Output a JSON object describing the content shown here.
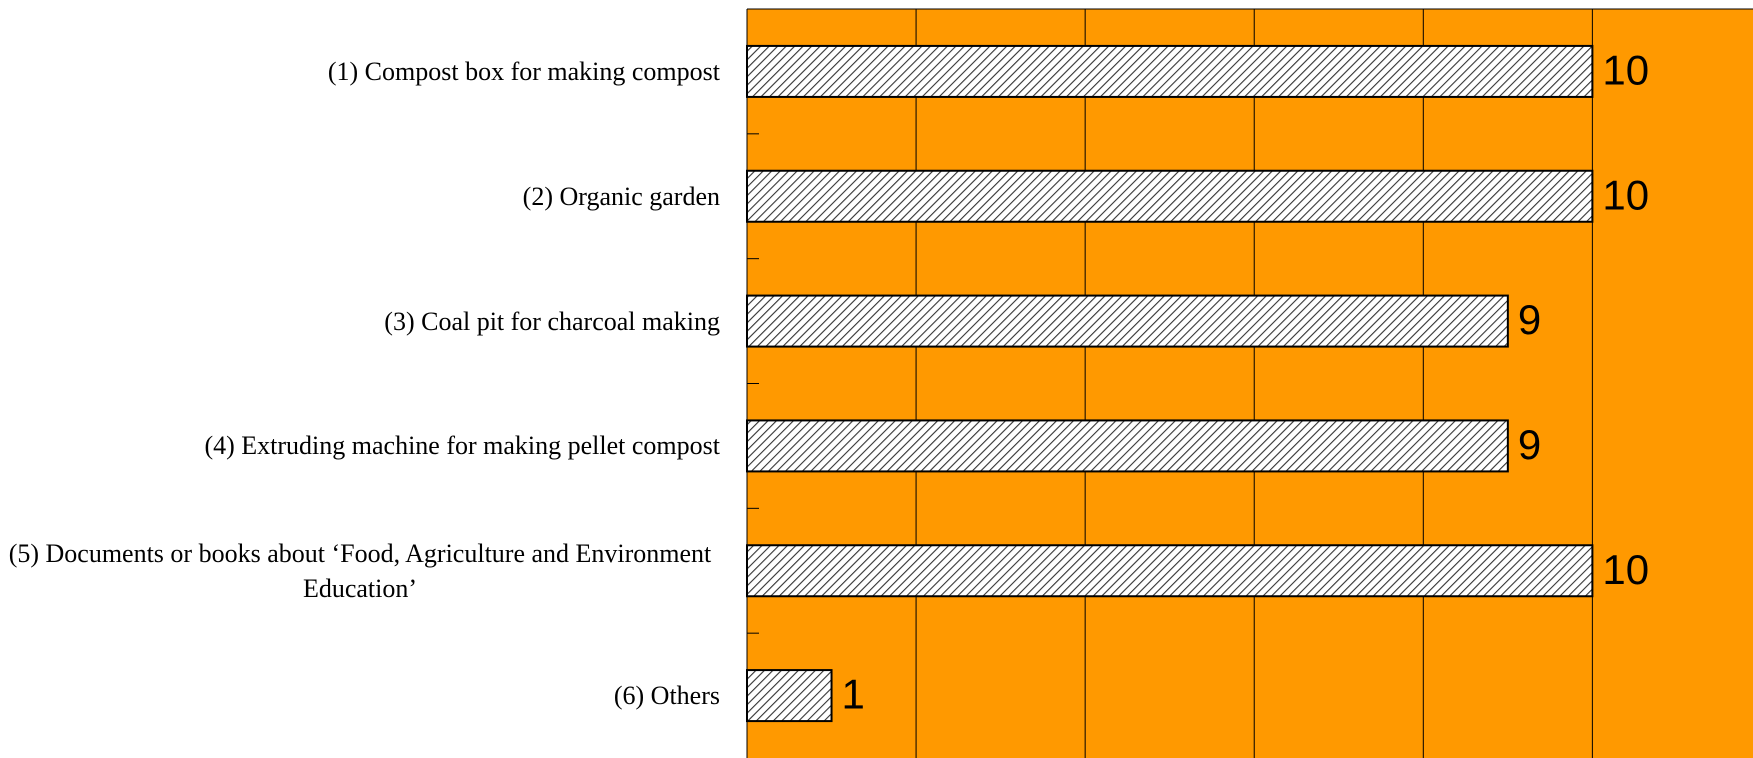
{
  "chart_data": {
    "type": "barh",
    "categories": [
      "(1) Compost box for making compost",
      "(2) Organic garden",
      "(3) Coal pit for charcoal making",
      "(4) Extruding machine for making pellet compost",
      "(5) Documents or books about ‘Food, Agriculture and Environment Education’",
      "(6) Others"
    ],
    "values": [
      10,
      10,
      9,
      9,
      10,
      1
    ],
    "color": "#ff9900",
    "xlim": [
      0,
      11.9
    ],
    "xticks": [
      0,
      2,
      4,
      6,
      8,
      10
    ],
    "grid": true
  }
}
